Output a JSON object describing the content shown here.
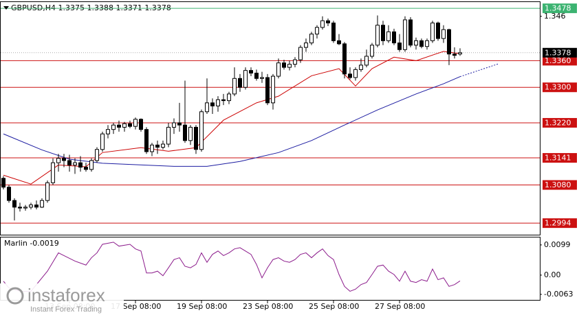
{
  "chart_data": [
    {
      "type": "candlestick",
      "title": "GBPUSD,H4  1.3375 1.3388 1.3371 1.3378",
      "xlim": [
        -0.5,
        97.5
      ],
      "ylim": [
        1.2971,
        1.3489
      ],
      "yticks": [
        1.346
      ],
      "bull_color": "#ffffff",
      "bear_color": "#000000",
      "open": [
        1.3095,
        1.3075,
        1.3045,
        1.303,
        1.3028,
        1.303,
        1.3035,
        1.303,
        1.3045,
        1.3085,
        1.313,
        1.314,
        1.3135,
        1.3125,
        1.313,
        1.312,
        1.3115,
        1.3135,
        1.316,
        1.3195,
        1.3205,
        1.3215,
        1.321,
        1.3218,
        1.3212,
        1.3228,
        1.3205,
        1.3155,
        1.317,
        1.3165,
        1.3172,
        1.321,
        1.322,
        1.3215,
        1.318,
        1.321,
        1.316,
        1.3245,
        1.3265,
        1.3258,
        1.3272,
        1.327,
        1.3285,
        1.332,
        1.33,
        1.3338,
        1.3332,
        1.332,
        1.3322,
        1.3265,
        1.3325,
        1.3355,
        1.3345,
        1.3352,
        1.3362,
        1.339,
        1.34,
        1.342,
        1.3435,
        1.345,
        1.3445,
        1.3405,
        1.3398,
        1.333,
        1.3322,
        1.334,
        1.335,
        1.337,
        1.3395,
        1.344,
        1.3405,
        1.3425,
        1.34,
        1.3385,
        1.3452,
        1.3395,
        1.3405,
        1.3392,
        1.3405,
        1.3445,
        1.341,
        1.343,
        1.3375,
        1.3375
      ],
      "high": [
        1.31,
        1.308,
        1.305,
        1.304,
        1.3035,
        1.304,
        1.3045,
        1.305,
        1.309,
        1.314,
        1.315,
        1.315,
        1.3148,
        1.314,
        1.3145,
        1.313,
        1.314,
        1.3165,
        1.32,
        1.3215,
        1.322,
        1.3225,
        1.3222,
        1.3225,
        1.3232,
        1.323,
        1.321,
        1.3175,
        1.318,
        1.318,
        1.322,
        1.323,
        1.3265,
        1.3315,
        1.3215,
        1.3215,
        1.325,
        1.332,
        1.3275,
        1.328,
        1.3285,
        1.329,
        1.3345,
        1.333,
        1.3345,
        1.3345,
        1.334,
        1.3335,
        1.333,
        1.333,
        1.3365,
        1.3362,
        1.336,
        1.3368,
        1.3395,
        1.341,
        1.3425,
        1.344,
        1.346,
        1.3455,
        1.345,
        1.342,
        1.3402,
        1.3345,
        1.3345,
        1.3365,
        1.3385,
        1.34,
        1.3462,
        1.345,
        1.344,
        1.3432,
        1.342,
        1.346,
        1.3458,
        1.3412,
        1.341,
        1.341,
        1.345,
        1.3448,
        1.344,
        1.3432,
        1.339,
        1.3388
      ],
      "low": [
        1.307,
        1.304,
        1.3,
        1.302,
        1.3022,
        1.3025,
        1.3025,
        1.3028,
        1.304,
        1.308,
        1.311,
        1.312,
        1.311,
        1.3105,
        1.311,
        1.311,
        1.311,
        1.313,
        1.3155,
        1.3185,
        1.3195,
        1.32,
        1.32,
        1.3208,
        1.3205,
        1.32,
        1.315,
        1.3145,
        1.315,
        1.316,
        1.3165,
        1.3195,
        1.32,
        1.3175,
        1.317,
        1.315,
        1.3155,
        1.324,
        1.324,
        1.3245,
        1.326,
        1.3262,
        1.328,
        1.329,
        1.3295,
        1.3325,
        1.3315,
        1.331,
        1.326,
        1.325,
        1.332,
        1.334,
        1.3338,
        1.3345,
        1.3355,
        1.338,
        1.3395,
        1.341,
        1.343,
        1.3438,
        1.34,
        1.3395,
        1.332,
        1.3318,
        1.3315,
        1.3335,
        1.3345,
        1.3365,
        1.339,
        1.3395,
        1.34,
        1.3395,
        1.338,
        1.338,
        1.339,
        1.3385,
        1.3388,
        1.3385,
        1.34,
        1.3405,
        1.34,
        1.335,
        1.3365,
        1.3371
      ],
      "close": [
        1.3075,
        1.3045,
        1.303,
        1.3028,
        1.303,
        1.3035,
        1.303,
        1.3045,
        1.3085,
        1.313,
        1.314,
        1.3135,
        1.3125,
        1.313,
        1.312,
        1.3115,
        1.3135,
        1.316,
        1.3195,
        1.3205,
        1.3215,
        1.321,
        1.3218,
        1.3212,
        1.3228,
        1.3205,
        1.3155,
        1.317,
        1.3165,
        1.3172,
        1.321,
        1.322,
        1.3215,
        1.318,
        1.321,
        1.316,
        1.3245,
        1.3265,
        1.3258,
        1.3272,
        1.327,
        1.3285,
        1.332,
        1.33,
        1.3338,
        1.3332,
        1.332,
        1.3322,
        1.3265,
        1.3325,
        1.3355,
        1.3345,
        1.3352,
        1.3362,
        1.339,
        1.34,
        1.342,
        1.3435,
        1.345,
        1.3445,
        1.3405,
        1.3398,
        1.333,
        1.3322,
        1.334,
        1.335,
        1.337,
        1.3395,
        1.344,
        1.3405,
        1.3425,
        1.34,
        1.3385,
        1.3452,
        1.3395,
        1.3405,
        1.3392,
        1.3405,
        1.3445,
        1.341,
        1.343,
        1.3375,
        1.3372,
        1.3378
      ],
      "series": [
        {
          "color": "#cc0000",
          "x": [
            0,
            5,
            10,
            15,
            18,
            25,
            30,
            35,
            40,
            46,
            50,
            56,
            61,
            64,
            67,
            71,
            75,
            80,
            83
          ],
          "values": [
            1.3102,
            1.3082,
            1.3125,
            1.3121,
            1.3153,
            1.3164,
            1.3156,
            1.3164,
            1.3226,
            1.3265,
            1.328,
            1.3326,
            1.3342,
            1.3303,
            1.3342,
            1.3368,
            1.336,
            1.3381,
            1.3376
          ]
        },
        {
          "color": "#1a1aa0",
          "x": [
            0,
            7,
            12,
            18,
            31,
            37,
            43,
            50,
            56,
            62,
            68,
            75,
            80,
            83
          ],
          "values": [
            1.3195,
            1.3159,
            1.3138,
            1.3129,
            1.3122,
            1.3122,
            1.3133,
            1.3153,
            1.318,
            1.3215,
            1.3249,
            1.3285,
            1.3308,
            1.3324
          ]
        },
        {
          "color": "#1a1aa0",
          "dash": true,
          "x": [
            83,
            90
          ],
          "values": [
            1.3324,
            1.3353
          ]
        }
      ],
      "levels": [
        {
          "value": 1.3478,
          "color": "#3cb371"
        },
        {
          "value": 1.336,
          "label": "1.3360",
          "color": "#cc1111"
        },
        {
          "value": 1.33,
          "label": "1.3300",
          "color": "#cc1111"
        },
        {
          "value": 1.322,
          "label": "1.3220",
          "color": "#cc1111"
        },
        {
          "value": 1.3141,
          "color": "#cc1111"
        },
        {
          "value": 1.308,
          "label": "1.3080",
          "color": "#cc1111"
        },
        {
          "value": 1.2994,
          "color": "#cc1111"
        }
      ],
      "last_price": 1.3378
    },
    {
      "type": "line",
      "title": "Marlin -0.0019",
      "xlim": [
        -0.5,
        97.5
      ],
      "ylim": [
        -0.0079,
        0.0119
      ],
      "yticks": [
        0.0099,
        {
          "value": 0,
          "label": "0.00"
        },
        -0.0063
      ],
      "xticks": [
        {
          "value": 12,
          "label": "13 Sep 08:00"
        },
        {
          "value": 24,
          "label": "17 Sep 08:00"
        },
        {
          "value": 36,
          "label": "19 Sep 08:00"
        },
        {
          "value": 48,
          "label": "23 Sep 08:00"
        },
        {
          "value": 60,
          "label": "25 Sep 08:00"
        },
        {
          "value": 72,
          "label": "27 Sep 08:00"
        }
      ],
      "series": [
        {
          "color": "#8b1a8b",
          "x": [
            0,
            1,
            3,
            5,
            6,
            8,
            10,
            11,
            13,
            15,
            16,
            17,
            18,
            20,
            21,
            23,
            24,
            25,
            26,
            27,
            28,
            29,
            30,
            31,
            32,
            33,
            34,
            35,
            36,
            37,
            38,
            39,
            40,
            41,
            42,
            43,
            44,
            45,
            46,
            47,
            48,
            49,
            50,
            51,
            52,
            53,
            54,
            55,
            56,
            57,
            58,
            59,
            60,
            61,
            62,
            63,
            64,
            65,
            66,
            67,
            68,
            69,
            70,
            71,
            72,
            73,
            74,
            75,
            76,
            77,
            78,
            79,
            80,
            81,
            82,
            83
          ],
          "values": [
            -0.002,
            -0.0042,
            -0.0053,
            -0.0053,
            -0.0031,
            0.0013,
            0.0073,
            0.0064,
            0.0046,
            0.0033,
            0.0057,
            0.0073,
            0.0101,
            0.0108,
            0.0095,
            0.0101,
            0.0086,
            0.0079,
            0.0007,
            0.0007,
            0.0013,
            -0.0002,
            0.0024,
            0.0051,
            0.0057,
            0.0029,
            0.0024,
            0.0035,
            0.0073,
            0.0042,
            0.0068,
            0.0079,
            0.0064,
            0.0073,
            0.0086,
            0.009,
            0.0079,
            0.0068,
            0.0035,
            -0.0009,
            0.0024,
            0.0051,
            0.0057,
            0.0046,
            0.0042,
            0.0051,
            0.0068,
            0.0073,
            0.0057,
            0.0073,
            0.0086,
            0.0064,
            0.0051,
            0.0002,
            -0.0037,
            -0.0053,
            -0.0046,
            -0.0031,
            -0.0024,
            0.0002,
            0.0029,
            0.0033,
            0.0013,
            0.0002,
            -0.002,
            0.0013,
            -0.002,
            -0.0024,
            -0.0015,
            -0.002,
            0.002,
            -0.0015,
            -0.0009,
            -0.0037,
            -0.0031,
            -0.0019
          ]
        }
      ]
    }
  ],
  "watermark": {
    "brand": "instaforex",
    "tagline": "Instant Forex Trading"
  }
}
